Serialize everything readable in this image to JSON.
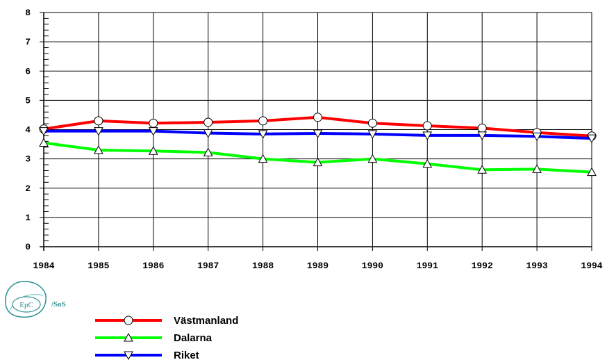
{
  "chart_data": {
    "type": "line",
    "title": "",
    "xlabel": "",
    "ylabel": "",
    "x": [
      "1984",
      "1985",
      "1986",
      "1987",
      "1988",
      "1989",
      "1990",
      "1991",
      "1992",
      "1993",
      "1994"
    ],
    "y_ticks": [
      "0",
      "1",
      "2",
      "3",
      "4",
      "5",
      "6",
      "7",
      "8"
    ],
    "ylim": [
      0,
      8
    ],
    "grid": true,
    "legend_position": "bottom-left",
    "series": [
      {
        "name": "Västmanland",
        "color": "#ff0000",
        "marker": "circle",
        "values": [
          4.02,
          4.3,
          4.22,
          4.25,
          4.3,
          4.42,
          4.22,
          4.13,
          4.05,
          3.9,
          3.78
        ]
      },
      {
        "name": "Dalarna",
        "color": "#00ff00",
        "marker": "triangle-up",
        "values": [
          3.55,
          3.3,
          3.27,
          3.22,
          3.0,
          2.88,
          3.0,
          2.83,
          2.63,
          2.65,
          2.55
        ]
      },
      {
        "name": "Riket",
        "color": "#0000ff",
        "marker": "triangle-down",
        "values": [
          3.95,
          3.95,
          3.95,
          3.88,
          3.85,
          3.87,
          3.85,
          3.8,
          3.8,
          3.77,
          3.7
        ]
      }
    ]
  },
  "logo": {
    "text": "EpC",
    "suffix": "/SoS"
  }
}
